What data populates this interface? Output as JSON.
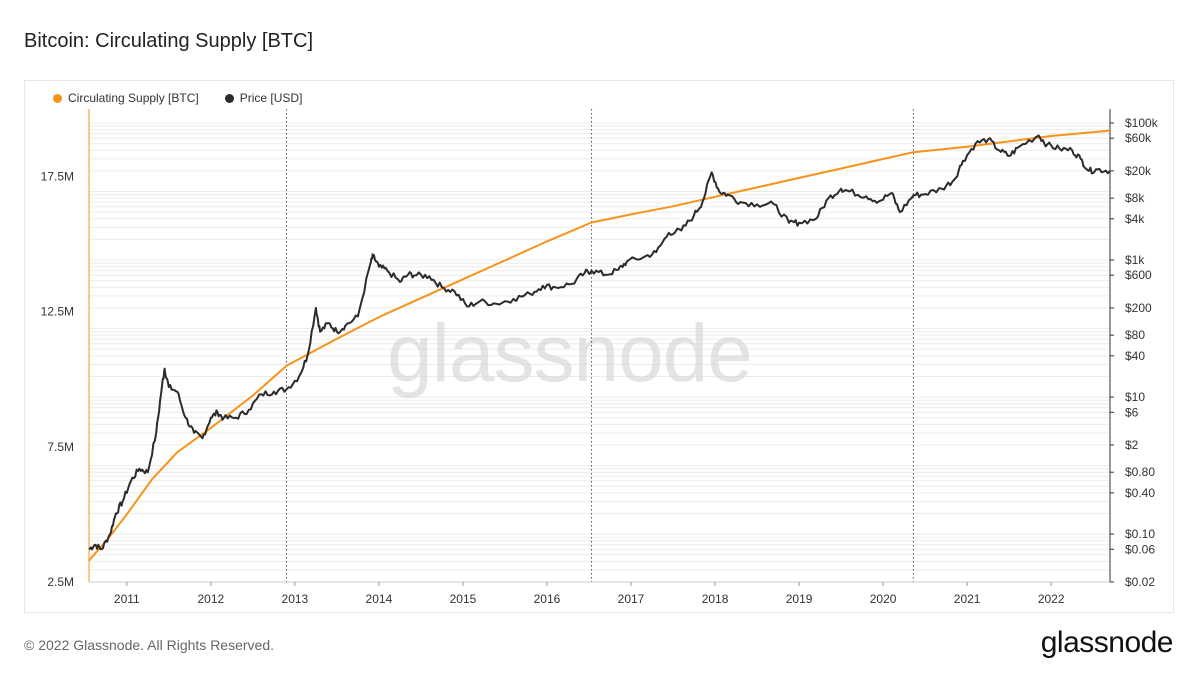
{
  "header": {
    "title": "Bitcoin: Circulating Supply [BTC]"
  },
  "footer": {
    "copyright": "© 2022 Glassnode. All Rights Reserved.",
    "brand": "glassnode"
  },
  "colors": {
    "supply": "#f7931a",
    "price": "#2b2b2b",
    "grid": "#ececec",
    "watermark": "#cfcfcf"
  },
  "chart_data": {
    "type": "line",
    "title": "Bitcoin: Circulating Supply [BTC]",
    "watermark": "glassnode",
    "legend_position": "top-left",
    "grid": true,
    "legend": [
      {
        "label": "Circulating Supply [BTC]",
        "color": "#f7931a"
      },
      {
        "label": "Price [USD]",
        "color": "#2b2b2b"
      }
    ],
    "x_axis": {
      "range": [
        2010.55,
        2022.7
      ],
      "ticks": [
        {
          "value": 2011,
          "label": "2011"
        },
        {
          "value": 2012,
          "label": "2012"
        },
        {
          "value": 2013,
          "label": "2013"
        },
        {
          "value": 2014,
          "label": "2014"
        },
        {
          "value": 2015,
          "label": "2015"
        },
        {
          "value": 2016,
          "label": "2016"
        },
        {
          "value": 2017,
          "label": "2017"
        },
        {
          "value": 2018,
          "label": "2018"
        },
        {
          "value": 2019,
          "label": "2019"
        },
        {
          "value": 2020,
          "label": "2020"
        },
        {
          "value": 2021,
          "label": "2021"
        },
        {
          "value": 2022,
          "label": "2022"
        }
      ],
      "halving_markers": [
        2012.9,
        2016.53,
        2020.36
      ]
    },
    "y_left": {
      "range": [
        2500000,
        20000000
      ],
      "ticks": [
        {
          "value": 2500000,
          "label": "2.5M"
        },
        {
          "value": 7500000,
          "label": "7.5M"
        },
        {
          "value": 12500000,
          "label": "12.5M"
        },
        {
          "value": 17500000,
          "label": "17.5M"
        }
      ]
    },
    "y_right": {
      "scale": "log",
      "range": [
        0.02,
        160000
      ],
      "ticks": [
        {
          "value": 100000,
          "label": "$100k"
        },
        {
          "value": 60000,
          "label": "$60k"
        },
        {
          "value": 20000,
          "label": "$20k"
        },
        {
          "value": 8000,
          "label": "$8k"
        },
        {
          "value": 4000,
          "label": "$4k"
        },
        {
          "value": 1000,
          "label": "$1k"
        },
        {
          "value": 600,
          "label": "$600"
        },
        {
          "value": 200,
          "label": "$200"
        },
        {
          "value": 80,
          "label": "$80"
        },
        {
          "value": 40,
          "label": "$40"
        },
        {
          "value": 10,
          "label": "$10"
        },
        {
          "value": 6,
          "label": "$6"
        },
        {
          "value": 2,
          "label": "$2"
        },
        {
          "value": 0.8,
          "label": "$0.80"
        },
        {
          "value": 0.4,
          "label": "$0.40"
        },
        {
          "value": 0.1,
          "label": "$0.10"
        },
        {
          "value": 0.06,
          "label": "$0.06"
        },
        {
          "value": 0.02,
          "label": "$0.02"
        }
      ]
    },
    "series": [
      {
        "name": "Circulating Supply [BTC]",
        "axis": "left",
        "points": [
          [
            2010.55,
            3300000
          ],
          [
            2010.75,
            4000000
          ],
          [
            2011.0,
            5000000
          ],
          [
            2011.3,
            6300000
          ],
          [
            2011.6,
            7300000
          ],
          [
            2012.0,
            8200000
          ],
          [
            2012.5,
            9400000
          ],
          [
            2012.9,
            10500000
          ],
          [
            2013.2,
            11000000
          ],
          [
            2013.5,
            11500000
          ],
          [
            2014.0,
            12300000
          ],
          [
            2014.5,
            13000000
          ],
          [
            2015.0,
            13700000
          ],
          [
            2015.5,
            14400000
          ],
          [
            2016.0,
            15100000
          ],
          [
            2016.53,
            15800000
          ],
          [
            2017.0,
            16100000
          ],
          [
            2017.5,
            16400000
          ],
          [
            2018.0,
            16750000
          ],
          [
            2018.5,
            17100000
          ],
          [
            2019.0,
            17450000
          ],
          [
            2019.5,
            17800000
          ],
          [
            2020.0,
            18150000
          ],
          [
            2020.36,
            18400000
          ],
          [
            2021.0,
            18600000
          ],
          [
            2021.5,
            18800000
          ],
          [
            2022.0,
            19000000
          ],
          [
            2022.7,
            19200000
          ]
        ]
      },
      {
        "name": "Price [USD]",
        "axis": "right",
        "points": [
          [
            2010.55,
            0.06
          ],
          [
            2010.62,
            0.07
          ],
          [
            2010.7,
            0.06
          ],
          [
            2010.8,
            0.1
          ],
          [
            2010.87,
            0.2
          ],
          [
            2010.95,
            0.3
          ],
          [
            2011.05,
            0.6
          ],
          [
            2011.15,
            0.9
          ],
          [
            2011.25,
            0.8
          ],
          [
            2011.35,
            3
          ],
          [
            2011.42,
            15
          ],
          [
            2011.45,
            26
          ],
          [
            2011.5,
            14
          ],
          [
            2011.6,
            12
          ],
          [
            2011.7,
            5
          ],
          [
            2011.8,
            3
          ],
          [
            2011.9,
            2.5
          ],
          [
            2012.0,
            5
          ],
          [
            2012.08,
            6
          ],
          [
            2012.15,
            4.9
          ],
          [
            2012.3,
            5
          ],
          [
            2012.45,
            6.5
          ],
          [
            2012.6,
            11
          ],
          [
            2012.75,
            12
          ],
          [
            2012.9,
            13
          ],
          [
            2013.05,
            20
          ],
          [
            2013.15,
            40
          ],
          [
            2013.25,
            200
          ],
          [
            2013.3,
            90
          ],
          [
            2013.4,
            120
          ],
          [
            2013.5,
            90
          ],
          [
            2013.6,
            110
          ],
          [
            2013.75,
            150
          ],
          [
            2013.9,
            900
          ],
          [
            2013.93,
            1150
          ],
          [
            2014.0,
            800
          ],
          [
            2014.1,
            700
          ],
          [
            2014.25,
            480
          ],
          [
            2014.35,
            620
          ],
          [
            2014.45,
            600
          ],
          [
            2014.6,
            580
          ],
          [
            2014.75,
            400
          ],
          [
            2014.9,
            350
          ],
          [
            2015.05,
            210
          ],
          [
            2015.2,
            250
          ],
          [
            2015.4,
            230
          ],
          [
            2015.6,
            270
          ],
          [
            2015.8,
            320
          ],
          [
            2015.95,
            420
          ],
          [
            2016.1,
            400
          ],
          [
            2016.3,
            450
          ],
          [
            2016.45,
            650
          ],
          [
            2016.53,
            700
          ],
          [
            2016.7,
            610
          ],
          [
            2016.85,
            720
          ],
          [
            2016.95,
            950
          ],
          [
            2017.15,
            1100
          ],
          [
            2017.3,
            1300
          ],
          [
            2017.45,
            2500
          ],
          [
            2017.6,
            2700
          ],
          [
            2017.75,
            4500
          ],
          [
            2017.85,
            7000
          ],
          [
            2017.96,
            19000
          ],
          [
            2018.05,
            10000
          ],
          [
            2018.15,
            9000
          ],
          [
            2018.3,
            7000
          ],
          [
            2018.5,
            6500
          ],
          [
            2018.7,
            6500
          ],
          [
            2018.88,
            3500
          ],
          [
            2019.0,
            3500
          ],
          [
            2019.2,
            4000
          ],
          [
            2019.35,
            8000
          ],
          [
            2019.5,
            11000
          ],
          [
            2019.6,
            10000
          ],
          [
            2019.8,
            8500
          ],
          [
            2019.95,
            7200
          ],
          [
            2020.1,
            9500
          ],
          [
            2020.2,
            5000
          ],
          [
            2020.36,
            8800
          ],
          [
            2020.5,
            9200
          ],
          [
            2020.7,
            11000
          ],
          [
            2020.85,
            15000
          ],
          [
            2020.95,
            28000
          ],
          [
            2021.1,
            50000
          ],
          [
            2021.25,
            58000
          ],
          [
            2021.38,
            40000
          ],
          [
            2021.5,
            33000
          ],
          [
            2021.62,
            45000
          ],
          [
            2021.85,
            66000
          ],
          [
            2021.95,
            48000
          ],
          [
            2022.1,
            42000
          ],
          [
            2022.25,
            40000
          ],
          [
            2022.35,
            30000
          ],
          [
            2022.45,
            20000
          ],
          [
            2022.55,
            21000
          ],
          [
            2022.7,
            20000
          ]
        ]
      }
    ]
  }
}
